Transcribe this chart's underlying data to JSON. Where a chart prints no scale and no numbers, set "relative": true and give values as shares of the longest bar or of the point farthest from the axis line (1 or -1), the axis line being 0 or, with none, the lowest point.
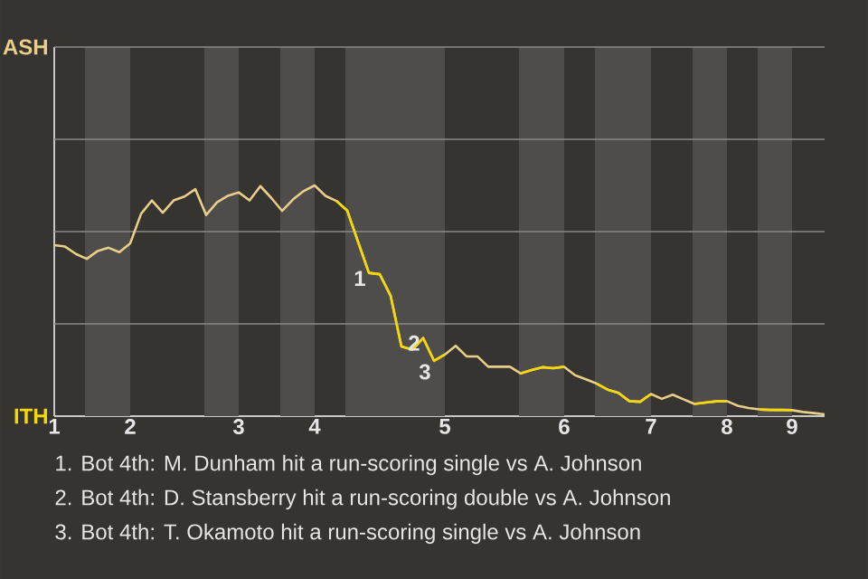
{
  "chart_data": {
    "type": "line",
    "relative": true,
    "categories": [
      "1",
      null,
      null,
      null,
      null,
      null,
      null,
      "2",
      null,
      null,
      null,
      null,
      null,
      null,
      null,
      null,
      null,
      "3",
      null,
      null,
      null,
      null,
      null,
      null,
      "4",
      null,
      null,
      null,
      null,
      null,
      null,
      null,
      null,
      null,
      null,
      null,
      "5",
      null,
      null,
      null,
      null,
      null,
      null,
      null,
      null,
      null,
      null,
      "6",
      null,
      null,
      null,
      null,
      null,
      null,
      null,
      "7",
      null,
      null,
      null,
      null,
      null,
      null,
      "8",
      null,
      null,
      null,
      null,
      null,
      "9",
      null,
      null,
      null
    ],
    "series": [
      {
        "color": "#e9cd8a",
        "values": [
          0.741,
          0.735,
          0.703,
          0.682,
          0.716,
          0.73,
          0.711,
          0.749,
          0.877,
          0.935,
          0.882,
          0.935,
          0.952,
          0.984,
          0.872,
          0.927,
          0.955,
          0.97,
          0.935,
          0.997,
          0.946,
          0.89,
          0.939,
          0.976,
          1,
          0.955,
          0.933,
          0.891,
          0.756,
          0.621,
          0.615,
          0.522,
          0.302,
          0.288,
          0.339,
          0.24,
          0.267,
          0.305,
          0.259,
          0.259,
          0.214,
          0.214,
          0.214,
          0.185,
          0.2,
          0.212,
          0.208,
          0.214,
          0.177,
          0.16,
          0.141,
          0.115,
          0.101,
          0.065,
          0.062,
          0.096,
          0.075,
          0.093,
          0.073,
          0.053,
          0.059,
          0.064,
          0.065,
          0.045,
          0.035,
          0.029,
          0.027,
          0.027,
          0.026,
          0.018,
          0.013,
          0.008
        ]
      },
      {
        "color": "#f5d800",
        "values": [
          null,
          null,
          null,
          null,
          null,
          null,
          null,
          null,
          null,
          null,
          null,
          null,
          null,
          null,
          null,
          null,
          null,
          null,
          null,
          null,
          null,
          null,
          null,
          null,
          null,
          null,
          0.933,
          0.891,
          0.756,
          0.621,
          0.615,
          0.522,
          0.302,
          0.288,
          0.339,
          0.24,
          0.267,
          null,
          null,
          null,
          null,
          null,
          null,
          0.185,
          0.2,
          0.212,
          0.208,
          0.214,
          null,
          null,
          0.141,
          0.115,
          0.101,
          0.065,
          0.062,
          0.096,
          null,
          null,
          null,
          0.053,
          0.059,
          0.064,
          0.065,
          null,
          null,
          0.029,
          0.027,
          0.027,
          0.026,
          null,
          null,
          null
        ]
      }
    ],
    "ref_lines": [
      {
        "axis": "y",
        "value": 0.4,
        "color": "#8a8a88"
      },
      {
        "axis": "y",
        "value": 0.8,
        "color": "#8a8a88"
      },
      {
        "axis": "y",
        "value": 1.2,
        "color": "#8a8a88"
      },
      {
        "axis": "y",
        "value": 1.6,
        "color": "#8a8a88"
      }
    ],
    "annotations": [
      "ASH",
      "ITH",
      {
        "text": "1",
        "y": 0.639
      },
      {
        "text": "2",
        "y": 0.359
      },
      {
        "text": "3",
        "y": 0.235
      },
      "1. Bot 4th: M. Dunham hit a run-scoring single vs A. Johnson",
      "2. Bot 4th: D. Stansberry hit a run-scoring double vs A. Johnson",
      "3. Bot 4th: T. Okamoto hit a run-scoring single vs A. Johnson"
    ]
  }
}
